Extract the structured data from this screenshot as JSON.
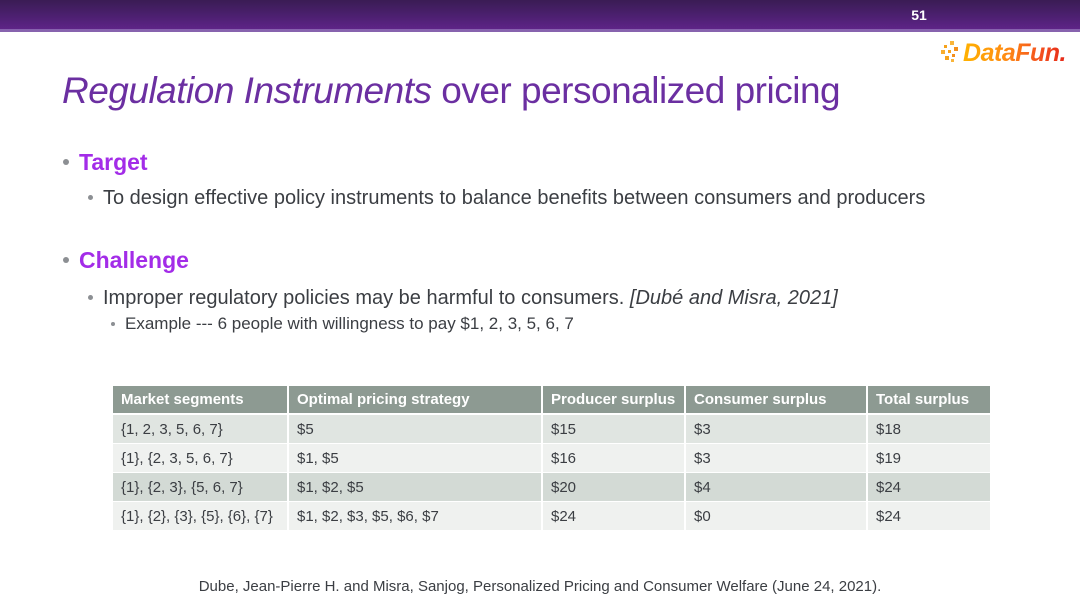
{
  "slide": {
    "number": "51",
    "logo_text": "DataFun.",
    "title": {
      "italic_part": "Regulation Instruments",
      "regular_part": " over personalized pricing"
    },
    "bullets": {
      "target_heading": "Target",
      "target_body": "To design effective policy instruments to balance benefits between consumers and producers",
      "challenge_heading": "Challenge",
      "challenge_body": "Improper regulatory policies may be harmful to consumers. ",
      "challenge_citation": "[Dubé and Misra, 2021]",
      "example": "Example --- 6 people with willingness to pay $1, 2, 3, 5, 6, 7"
    },
    "footer": "Dube, Jean-Pierre H. and Misra, Sanjog, Personalized Pricing and Consumer Welfare (June 24, 2021)."
  },
  "table": {
    "headers": [
      "Market segments",
      "Optimal pricing strategy",
      "Producer surplus",
      "Consumer surplus",
      "Total surplus"
    ],
    "rows": [
      [
        "{1, 2, 3, 5, 6, 7}",
        "$5",
        "$15",
        "$3",
        "$18"
      ],
      [
        "{1}, {2, 3, 5, 6, 7}",
        "$1, $5",
        "$16",
        "$3",
        "$19"
      ],
      [
        "{1}, {2, 3}, {5, 6, 7}",
        "$1, $2, $5",
        "$20",
        "$4",
        "$24"
      ],
      [
        "{1}, {2}, {3}, {5}, {6}, {7}",
        "$1, $2, $3, $5, $6, $7",
        "$24",
        "$0",
        "$24"
      ]
    ]
  },
  "colors": {
    "title_purple": "#6b2fa1",
    "heading_purple": "#a32ce8",
    "body_text": "#3b3e43",
    "bar_gradient_top": "#3a1c54",
    "bar_gradient_bottom": "#5e2487",
    "bar_border": "#8763ae",
    "table_header_bg": "#8d9a92",
    "table_row_shaded": "#d3dad5",
    "table_row_light": "#eff1ef",
    "logo_orange": "#ff8d12",
    "logo_red": "#e52718"
  }
}
